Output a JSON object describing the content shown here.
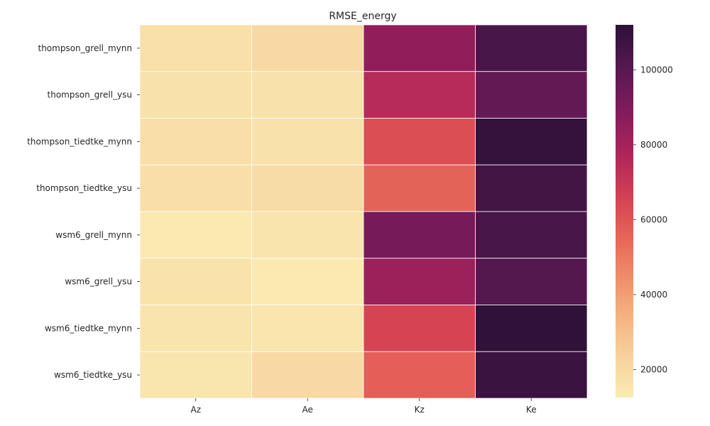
{
  "chart_data": {
    "type": "heatmap",
    "title": "RMSE_energy",
    "xlabel": "",
    "ylabel": "",
    "x_categories": [
      "Az",
      "Ae",
      "Kz",
      "Ke"
    ],
    "y_categories": [
      "thompson_grell_mynn",
      "thompson_grell_ysu",
      "thompson_tiedtke_mynn",
      "thompson_tiedtke_ysu",
      "wsm6_grell_mynn",
      "wsm6_grell_ysu",
      "wsm6_tiedtke_mynn",
      "wsm6_tiedtke_ysu"
    ],
    "values": [
      [
        17500,
        20500,
        85000,
        104000
      ],
      [
        16500,
        16500,
        75000,
        97000
      ],
      [
        18000,
        16500,
        62000,
        110000
      ],
      [
        18000,
        19000,
        56000,
        106000
      ],
      [
        13500,
        15500,
        92000,
        104000
      ],
      [
        16000,
        13000,
        82000,
        101000
      ],
      [
        15500,
        15000,
        65000,
        111000
      ],
      [
        14500,
        20000,
        57000,
        108000
      ]
    ],
    "colorbar": {
      "min": 12500,
      "max": 112000,
      "ticks": [
        20000,
        40000,
        60000,
        80000,
        100000
      ],
      "colormap": "rocket_r"
    },
    "grid": false
  }
}
